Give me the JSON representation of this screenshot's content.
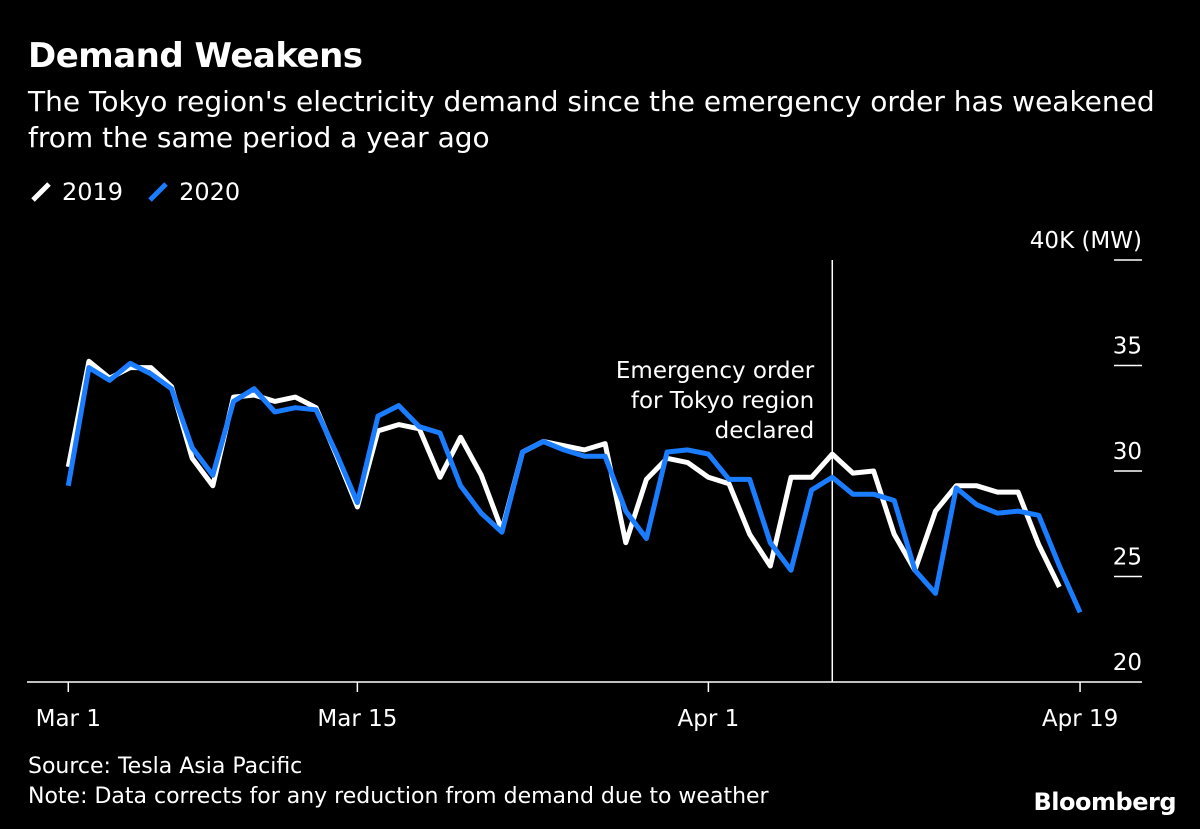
{
  "header": {
    "title": "Demand Weakens",
    "subtitle": "The Tokyo region's electricity demand since the emergency order has weakened from the same period a year ago"
  },
  "legend": [
    {
      "label": "2019",
      "color": "#ffffff"
    },
    {
      "label": "2020",
      "color": "#1a7cff"
    }
  ],
  "footer": {
    "source": "Source: Tesla Asia Pacific",
    "note": "Note: Data corrects for any reduction from demand due to weather",
    "brand": "Bloomberg"
  },
  "chart_data": {
    "type": "line",
    "x_start": "Mar 1",
    "x_ticks": [
      {
        "label": "Mar 1",
        "day": 1
      },
      {
        "label": "Mar 15",
        "day": 15
      },
      {
        "label": "Apr 1",
        "day": 32
      },
      {
        "label": "Apr 19",
        "day": 50
      }
    ],
    "y_ticks": [
      {
        "value": 20,
        "label": "20"
      },
      {
        "value": 25,
        "label": "25"
      },
      {
        "value": 30,
        "label": "30"
      },
      {
        "value": 35,
        "label": "35"
      },
      {
        "value": 40,
        "label": "40K (MW)"
      }
    ],
    "ylim": [
      20,
      40
    ],
    "xlim": [
      -1,
      53
    ],
    "annotation": {
      "text": [
        "Emergency order",
        "for Tokyo region",
        "declared"
      ],
      "day": 38
    },
    "series": [
      {
        "name": "2019",
        "color": "#ffffff",
        "values": [
          30.2,
          35.2,
          34.4,
          34.9,
          34.9,
          34.0,
          30.6,
          29.3,
          33.5,
          33.6,
          33.3,
          33.5,
          33.0,
          30.7,
          28.3,
          31.9,
          32.2,
          32.0,
          29.7,
          31.6,
          29.8,
          27.2,
          30.9,
          31.4,
          31.2,
          31.0,
          31.3,
          26.6,
          29.6,
          30.6,
          30.4,
          29.7,
          29.4,
          27.0,
          25.5,
          29.7,
          29.7,
          30.8,
          29.9,
          30.0,
          27.0,
          25.3,
          28.1,
          29.3,
          29.3,
          29.0,
          29.0,
          26.5,
          24.5
        ]
      },
      {
        "name": "2020",
        "color": "#1a7cff",
        "values": [
          29.3,
          34.9,
          34.3,
          35.1,
          34.6,
          33.9,
          31.1,
          29.8,
          33.3,
          33.9,
          32.8,
          33.0,
          32.9,
          30.8,
          28.5,
          32.6,
          33.1,
          32.1,
          31.8,
          29.3,
          28.0,
          27.1,
          30.9,
          31.4,
          31.0,
          30.7,
          30.7,
          28.1,
          26.8,
          30.9,
          31.0,
          30.8,
          29.6,
          29.6,
          26.6,
          25.3,
          29.1,
          29.7,
          28.9,
          28.9,
          28.6,
          25.3,
          24.2,
          29.2,
          28.4,
          28.0,
          28.1,
          27.9,
          25.5,
          23.3
        ]
      }
    ]
  }
}
